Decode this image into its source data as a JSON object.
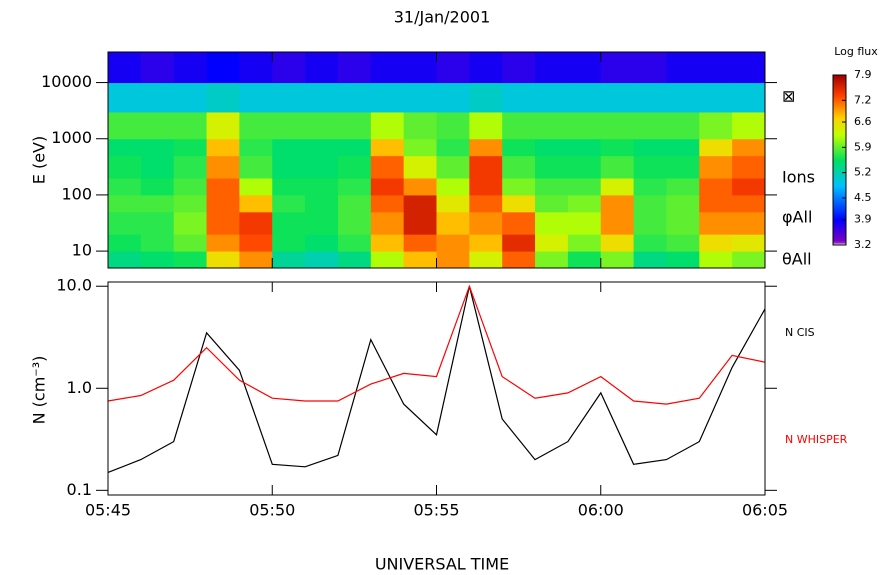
{
  "chart_data": [
    {
      "type": "heatmap",
      "title": "31/Jan/2001",
      "ylabel": "E (eV)",
      "log_y": true,
      "x_bins": [
        "05:45",
        "05:46",
        "05:47",
        "05:48",
        "05:49",
        "05:50",
        "05:51",
        "05:52",
        "05:53",
        "05:54",
        "05:55",
        "05:56",
        "05:57",
        "05:58",
        "05:59",
        "06:00",
        "06:01",
        "06:02",
        "06:03",
        "06:04",
        "06:05"
      ],
      "y_bins": [
        5,
        10,
        20,
        50,
        100,
        200,
        500,
        1000,
        3000,
        10000,
        35000
      ],
      "ylim": [
        5,
        35000
      ],
      "yticks": [
        10,
        100,
        1000,
        10000
      ],
      "z": [
        [
          5.4,
          5.5,
          5.6,
          6.6,
          7.0,
          5.3,
          5.2,
          5.4,
          6.2,
          6.8,
          7.0,
          6.4,
          7.2,
          6.0,
          5.6,
          6.0,
          5.4,
          5.5,
          6.2,
          6.0
        ],
        [
          5.6,
          5.7,
          5.9,
          7.0,
          7.3,
          5.6,
          5.5,
          5.7,
          6.8,
          7.2,
          7.0,
          6.8,
          7.5,
          6.4,
          6.0,
          6.6,
          5.7,
          5.8,
          6.6,
          6.5
        ],
        [
          5.7,
          5.7,
          6.0,
          7.2,
          7.4,
          5.6,
          5.6,
          5.8,
          7.0,
          7.6,
          6.8,
          7.0,
          7.2,
          6.2,
          6.2,
          7.0,
          5.8,
          5.9,
          7.0,
          7.0
        ],
        [
          5.8,
          5.8,
          5.9,
          7.2,
          6.8,
          5.7,
          5.6,
          5.8,
          7.2,
          7.6,
          6.5,
          7.2,
          6.6,
          5.9,
          6.0,
          7.0,
          5.8,
          5.9,
          7.2,
          7.2
        ],
        [
          5.7,
          5.6,
          5.8,
          7.2,
          6.2,
          5.6,
          5.6,
          5.7,
          7.4,
          7.0,
          6.2,
          7.4,
          6.0,
          5.8,
          5.8,
          6.4,
          5.7,
          5.8,
          7.2,
          7.4
        ],
        [
          5.6,
          5.5,
          5.7,
          7.0,
          5.8,
          5.5,
          5.5,
          5.6,
          7.2,
          6.4,
          5.9,
          7.4,
          5.8,
          5.6,
          5.6,
          5.8,
          5.6,
          5.6,
          7.0,
          7.2
        ],
        [
          5.5,
          5.5,
          5.6,
          6.8,
          5.7,
          5.5,
          5.5,
          5.5,
          6.8,
          6.0,
          5.7,
          7.0,
          5.6,
          5.5,
          5.5,
          5.6,
          5.5,
          5.5,
          6.6,
          7.0
        ],
        [
          5.8,
          5.8,
          5.8,
          6.4,
          5.8,
          5.8,
          5.8,
          5.8,
          6.2,
          5.9,
          5.8,
          6.2,
          5.8,
          5.8,
          5.8,
          5.8,
          5.8,
          5.8,
          6.0,
          6.2
        ],
        [
          5.0,
          5.0,
          5.0,
          5.1,
          5.0,
          5.0,
          5.0,
          5.0,
          5.0,
          5.0,
          5.0,
          5.1,
          5.0,
          5.0,
          5.0,
          5.0,
          5.0,
          5.0,
          5.0,
          5.0
        ],
        [
          3.8,
          3.7,
          3.8,
          3.9,
          3.8,
          3.7,
          3.8,
          3.7,
          3.8,
          3.8,
          3.7,
          3.8,
          3.7,
          3.8,
          3.8,
          3.7,
          3.7,
          3.8,
          3.8,
          3.8
        ]
      ],
      "colorbar": {
        "label": "Log flux",
        "lim": [
          3.2,
          7.9
        ],
        "ticks": [
          3.2,
          3.9,
          4.5,
          5.2,
          5.9,
          6.6,
          7.2,
          7.9
        ]
      },
      "annotations": [
        "⊠",
        "Ions",
        "φAll",
        "θAll"
      ]
    },
    {
      "type": "line",
      "xlabel": "UNIVERSAL TIME",
      "ylabel": "N (cm⁻³)",
      "log_y": true,
      "x": [
        "05:45",
        "05:46",
        "05:47",
        "05:48",
        "05:49",
        "05:50",
        "05:51",
        "05:52",
        "05:53",
        "05:54",
        "05:55",
        "05:56",
        "05:57",
        "05:58",
        "05:59",
        "06:00",
        "06:01",
        "06:02",
        "06:03",
        "06:04",
        "06:05"
      ],
      "xlim": [
        "05:45",
        "06:05"
      ],
      "xticks": [
        "05:45",
        "05:50",
        "05:55",
        "06:00",
        "06:05"
      ],
      "ylim": [
        0.09,
        11
      ],
      "yticks": [
        0.1,
        {
          "value": 1,
          "label": "1.0"
        },
        {
          "value": 10,
          "label": "10.0"
        }
      ],
      "series": [
        {
          "name": "N CIS",
          "color": "#000000",
          "values": [
            0.15,
            0.2,
            0.3,
            3.5,
            1.5,
            0.18,
            0.17,
            0.22,
            3.0,
            0.7,
            0.35,
            10,
            0.5,
            0.2,
            0.3,
            0.9,
            0.18,
            0.2,
            0.3,
            1.6,
            6
          ]
        },
        {
          "name": "N WHISPER",
          "color": "#ff0000",
          "values": [
            0.75,
            0.85,
            1.2,
            2.5,
            1.2,
            0.8,
            0.75,
            0.75,
            1.1,
            1.4,
            1.3,
            10,
            1.3,
            0.8,
            0.9,
            1.3,
            0.75,
            0.7,
            0.8,
            2.1,
            1.8
          ]
        }
      ]
    }
  ]
}
